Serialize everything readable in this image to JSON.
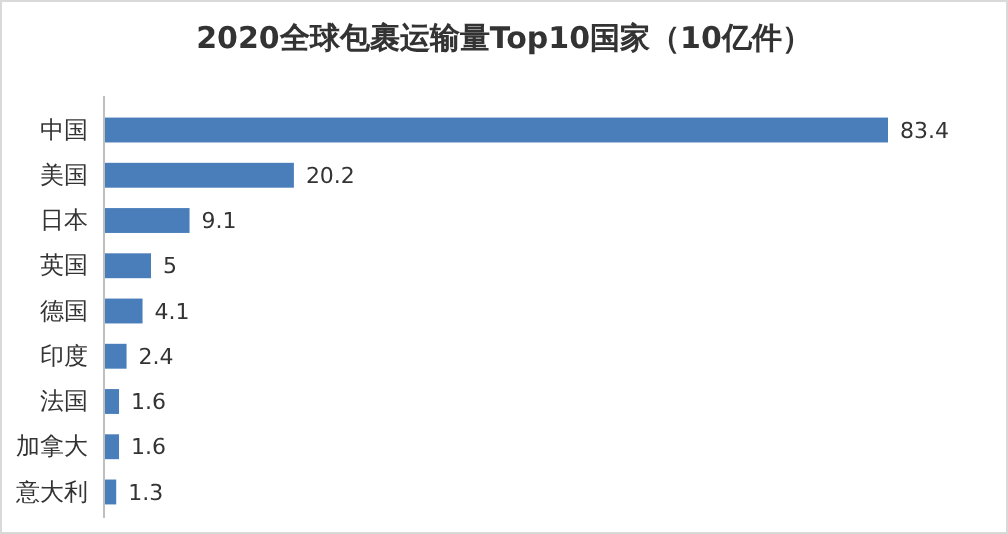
{
  "chart_data": {
    "type": "bar",
    "orientation": "horizontal",
    "title": "2020全球包裹运输量Top10国家（10亿件）",
    "categories": [
      "中国",
      "美国",
      "日本",
      "英国",
      "德国",
      "印度",
      "法国",
      "加拿大",
      "意大利"
    ],
    "values": [
      83.4,
      20.2,
      9.1,
      5,
      4.1,
      2.4,
      1.6,
      1.6,
      1.3
    ],
    "color": "#4a7ebb",
    "data_labels": true
  }
}
